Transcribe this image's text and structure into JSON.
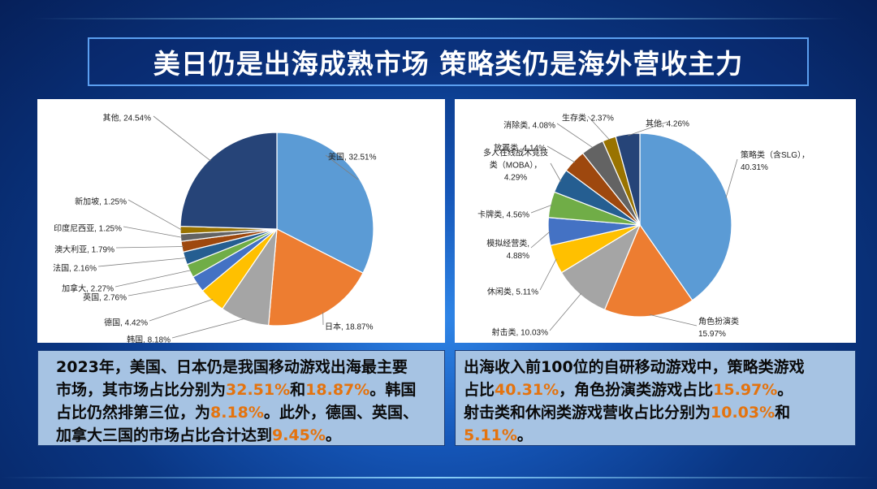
{
  "title": "美日仍是出海成熟市场 策略类仍是海外营收主力",
  "colors": {
    "blue": "#5b9bd5",
    "orange": "#ed7d31",
    "gray": "#a5a5a5",
    "gold": "#ffc000",
    "mid_blue": "#4472c4",
    "green": "#70ad47",
    "dark_blue": "#255e91",
    "brown": "#9e480e",
    "dark_gray": "#636363",
    "olive": "#997300",
    "navy": "#264478",
    "edge": "#ffffff",
    "leader": "#7f7f7f"
  },
  "chart_data": [
    {
      "type": "pie",
      "categories": [
        "美国",
        "日本",
        "韩国",
        "德国",
        "英国",
        "加拿大",
        "法国",
        "澳大利亚",
        "印度尼西亚",
        "新加坡",
        "其他"
      ],
      "values": [
        32.51,
        18.87,
        8.18,
        4.42,
        2.76,
        2.27,
        2.16,
        1.79,
        1.25,
        1.25,
        24.54
      ],
      "labels": [
        "美国, 32.51%",
        "日本, 18.87%",
        "韩国, 8.18%",
        "德国, 4.42%",
        "英国, 2.76%",
        "加拿大, 2.27%",
        "法国, 2.16%",
        "澳大利亚, 1.79%",
        "印度尼西亚, 1.25%",
        "新加坡, 1.25%",
        "其他, 24.54%"
      ],
      "color_keys": [
        "blue",
        "orange",
        "gray",
        "gold",
        "mid_blue",
        "green",
        "dark_blue",
        "brown",
        "dark_gray",
        "olive",
        "navy"
      ]
    },
    {
      "type": "pie",
      "categories": [
        "策略类（含SLG）",
        "角色扮演类",
        "射击类",
        "休闲类",
        "模拟经营类",
        "卡牌类",
        "多人在线战术竞技类（MOBA）",
        "放置类",
        "消除类",
        "生存类",
        "其他"
      ],
      "values": [
        40.31,
        15.97,
        10.03,
        5.11,
        4.88,
        4.56,
        4.29,
        4.14,
        4.08,
        2.37,
        4.26
      ],
      "labels": [
        [
          "策略类（含SLG），",
          "40.31%"
        ],
        [
          "角色扮演类",
          "15.97%"
        ],
        [
          "射击类, 10.03%"
        ],
        [
          "休闲类, 5.11%"
        ],
        [
          "模拟经营类,",
          "4.88%"
        ],
        [
          "卡牌类, 4.56%"
        ],
        [
          "多人在线战术竞技",
          "类（MOBA），",
          "4.29%"
        ],
        [
          "放置类, 4.14%"
        ],
        [
          "消除类, 4.08%"
        ],
        [
          "生存类, 2.37%"
        ],
        [
          "其他, 4.26%"
        ]
      ],
      "color_keys": [
        "blue",
        "orange",
        "gray",
        "gold",
        "mid_blue",
        "green",
        "dark_blue",
        "brown",
        "dark_gray",
        "olive",
        "navy"
      ]
    }
  ],
  "left_text": {
    "lines": [
      [
        {
          "t": "2023年，美国、日本仍是我国移动游戏出海最主要"
        }
      ],
      [
        {
          "t": "市场，其市场占比分别为"
        },
        {
          "t": "32.51%",
          "h": true
        },
        {
          "t": "和"
        },
        {
          "t": "18.87%",
          "h": true
        },
        {
          "t": "。韩国"
        }
      ],
      [
        {
          "t": "占比仍然排第三位，为"
        },
        {
          "t": "8.18%",
          "h": true
        },
        {
          "t": "。此外，德国、英国、"
        }
      ],
      [
        {
          "t": "加拿大三国的市场占比合计达到"
        },
        {
          "t": "9.45%",
          "h": true
        },
        {
          "t": "。"
        }
      ]
    ]
  },
  "right_text": {
    "lines": [
      [
        {
          "t": "出海收入前100位的自研移动游戏中，策略类游戏"
        }
      ],
      [
        {
          "t": "占比"
        },
        {
          "t": "40.31%",
          "h": true
        },
        {
          "t": "，角色扮演类游戏占比"
        },
        {
          "t": "15.97%",
          "h": true
        },
        {
          "t": "。"
        }
      ],
      [
        {
          "t": "射击类和休闲类游戏营收占比分别为"
        },
        {
          "t": "10.03%",
          "h": true
        },
        {
          "t": "和"
        }
      ],
      [
        {
          "t": "5.11%",
          "h": true
        },
        {
          "t": "。"
        }
      ]
    ]
  }
}
